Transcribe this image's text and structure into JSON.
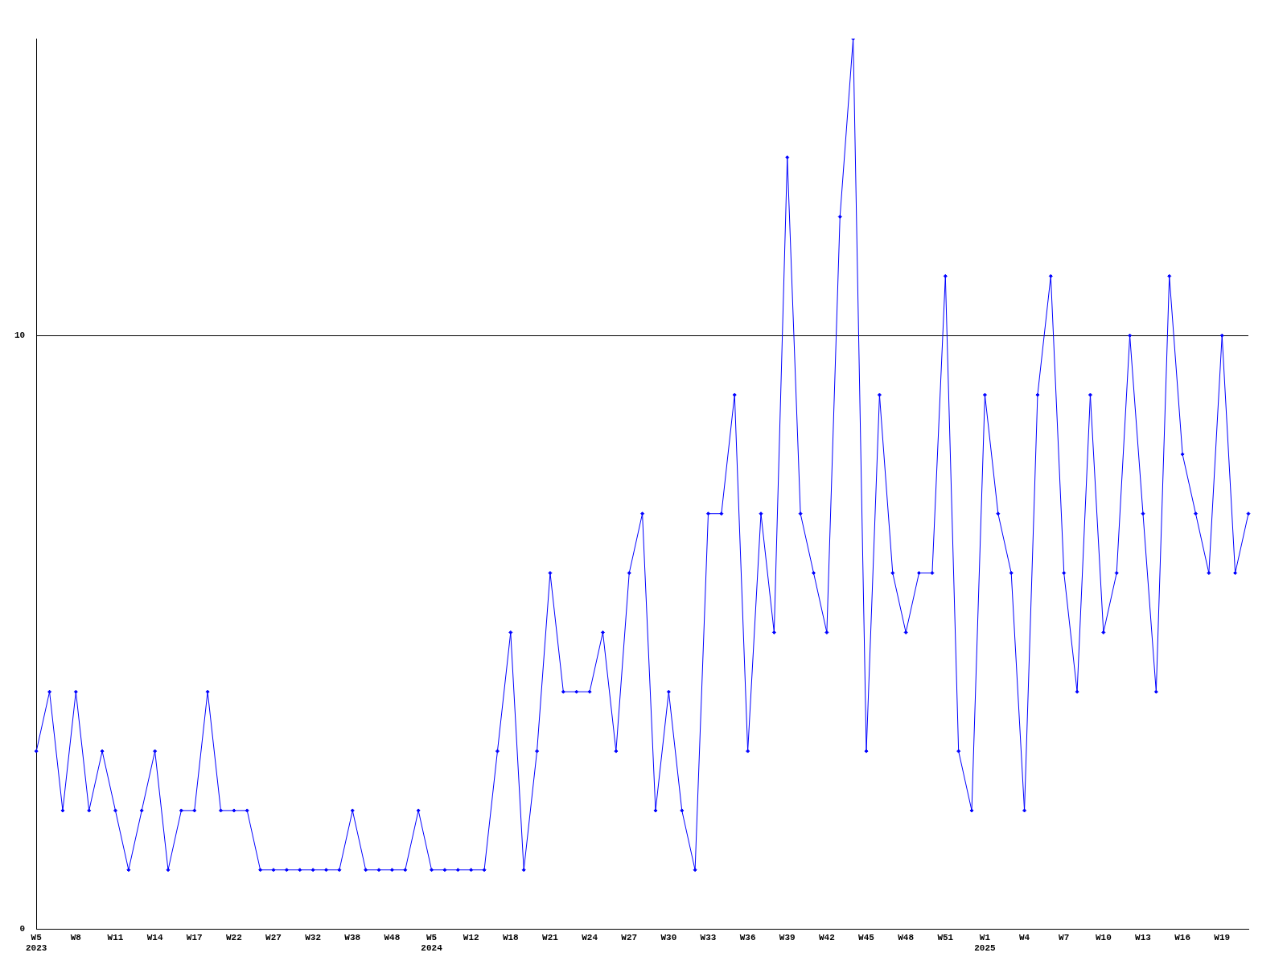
{
  "chart_data": {
    "type": "line",
    "categories": [
      "W5\n2023",
      null,
      null,
      "W8",
      null,
      null,
      "W11",
      null,
      null,
      "W14",
      null,
      null,
      "W17",
      null,
      null,
      "W22",
      null,
      null,
      "W27",
      null,
      null,
      "W32",
      null,
      null,
      "W38",
      null,
      null,
      "W48",
      null,
      null,
      "W5\n2024",
      null,
      null,
      "W12",
      null,
      null,
      "W18",
      null,
      null,
      "W21",
      null,
      null,
      "W24",
      null,
      null,
      "W27",
      null,
      null,
      "W30",
      null,
      null,
      "W33",
      null,
      null,
      "W36",
      null,
      null,
      "W39",
      null,
      null,
      "W42",
      null,
      null,
      "W45",
      null,
      null,
      "W48",
      null,
      null,
      "W51",
      null,
      null,
      "W1\n2025",
      null,
      null,
      "W4",
      null,
      null,
      "W7",
      null,
      null,
      "W10",
      null,
      null,
      "W13",
      null,
      null,
      "W16",
      null,
      null,
      "W19",
      null,
      null
    ],
    "series": [
      {
        "color": "#0000ff",
        "values": [
          3,
          4,
          2,
          4,
          2,
          3,
          2,
          1,
          2,
          3,
          1,
          2,
          2,
          4,
          2,
          2,
          2,
          1,
          1,
          1,
          1,
          1,
          1,
          1,
          2,
          1,
          1,
          1,
          1,
          2,
          1,
          1,
          1,
          1,
          1,
          3,
          5,
          1,
          3,
          6,
          4,
          4,
          4,
          5,
          3,
          6,
          7,
          2,
          4,
          2,
          1,
          7,
          7,
          9,
          3,
          7,
          5,
          13,
          7,
          6,
          5,
          12,
          15,
          3,
          9,
          6,
          5,
          6,
          6,
          11,
          3,
          2,
          9,
          7,
          6,
          2,
          9,
          11,
          6,
          4,
          9,
          5,
          6,
          10,
          7,
          4,
          11,
          8,
          7,
          6,
          10,
          6,
          7
        ]
      }
    ],
    "ylim": [
      0,
      15
    ],
    "yticks": [
      0,
      10
    ],
    "grid": "y",
    "marker": "diamond",
    "line_style": "solid",
    "legend": false
  }
}
